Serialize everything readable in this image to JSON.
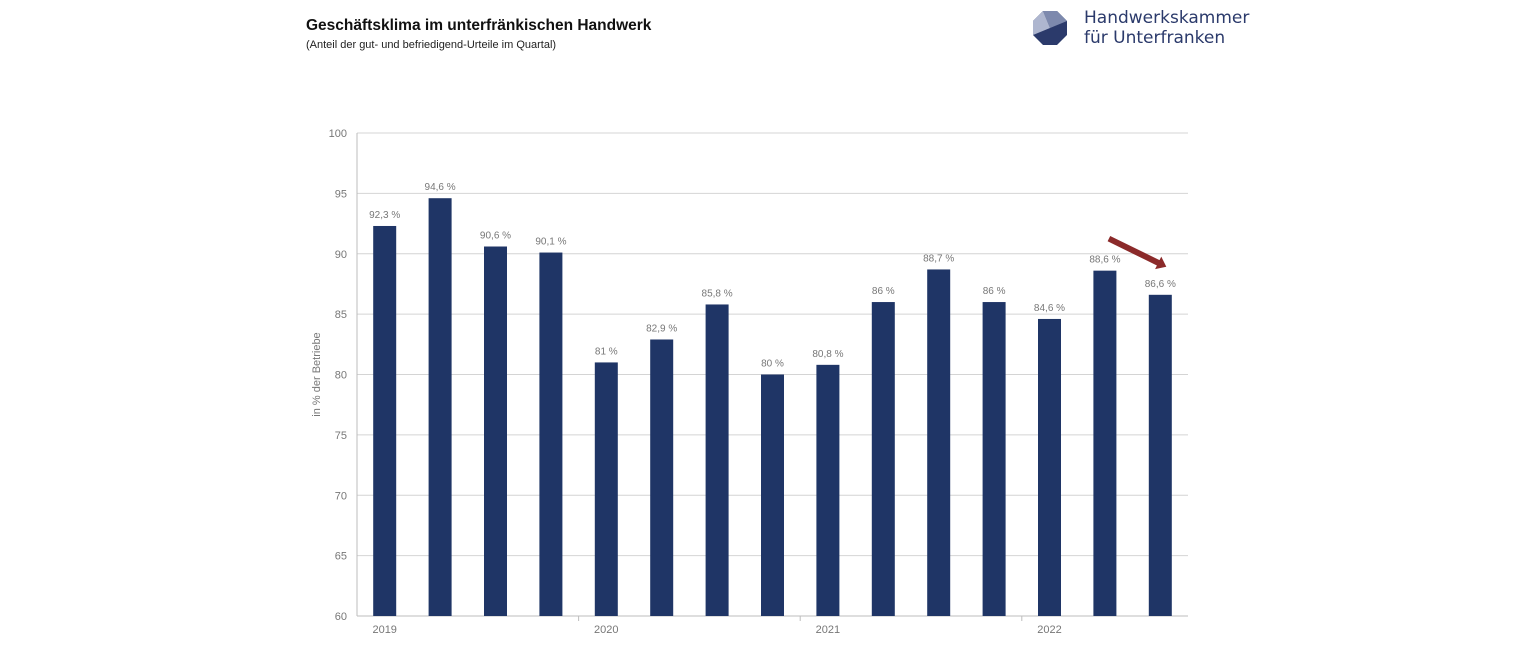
{
  "header": {
    "title": "Geschäftsklima im unterfränkischen Handwerk",
    "subtitle": "(Anteil der gut- und befriedigend-Urteile im Quartal)"
  },
  "logo": {
    "line1": "Handwerkskammer",
    "line2": "für Unterfranken",
    "icon": "octagon-logo-icon",
    "color": "#2b3a6b"
  },
  "chart_data": {
    "type": "bar",
    "title": "Geschäftsklima im unterfränkischen Handwerk",
    "subtitle": "(Anteil der gut- und befriedigend-Urteile im Quartal)",
    "ylabel": "in % der Betriebe",
    "xlabel": "",
    "ylim": [
      60,
      100
    ],
    "yticks": [
      60,
      65,
      70,
      75,
      80,
      85,
      90,
      95,
      100
    ],
    "grid": true,
    "bar_color": "#1f3566",
    "arrow_color": "#8b2a2a",
    "year_labels": [
      {
        "label": "2019",
        "index": 0
      },
      {
        "label": "2020",
        "index": 4
      },
      {
        "label": "2021",
        "index": 8
      },
      {
        "label": "2022",
        "index": 12
      }
    ],
    "values": [
      92.3,
      94.6,
      90.6,
      90.1,
      81,
      82.9,
      85.8,
      80,
      80.8,
      86,
      88.7,
      86,
      84.6,
      88.6,
      86.6
    ],
    "labels": [
      "92,3 %",
      "94,6 %",
      "90,6 %",
      "90,1 %",
      "81 %",
      "82,9 %",
      "85,8 %",
      "80 %",
      "80,8 %",
      "86 %",
      "88,7 %",
      "86 %",
      "84,6 %",
      "88,6 %",
      "86,6 %"
    ],
    "annotation": {
      "type": "down-arrow",
      "from_index": 13,
      "to_index": 14
    }
  }
}
